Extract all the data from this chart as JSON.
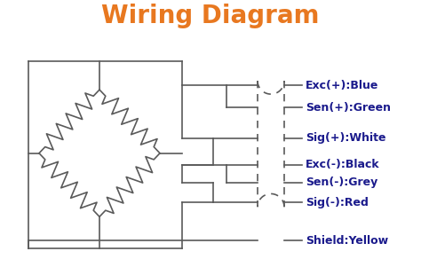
{
  "title": "Wiring Diagram",
  "title_color": "#E87820",
  "title_fontsize": 20,
  "label_color": "#1a1a8c",
  "line_color": "#5a5a5a",
  "bg_color": "#ffffff",
  "labels": [
    "Exc(+):Blue",
    "Sen(+):Green",
    "Sig(+):White",
    "Exc(-):Black",
    "Sen(-):Grey",
    "Sig(-):Red",
    "Shield:Yellow"
  ],
  "label_fontsize": 9
}
